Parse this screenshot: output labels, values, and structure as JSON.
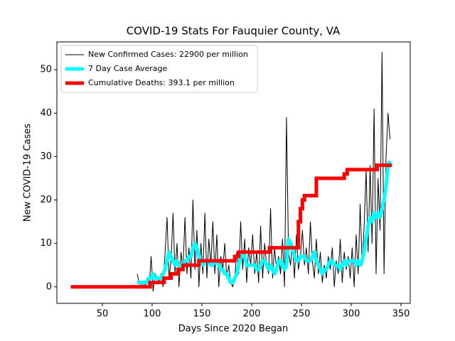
{
  "chart_data": {
    "type": "line",
    "title": "COVID-19 Stats For Fauquier County, VA",
    "x_label": "Days Since 2020 Began",
    "y_label": "New COVID-19 Cases",
    "xlim": [
      4.3,
      359.3
    ],
    "ylim": [
      -3.8,
      56.4
    ],
    "xticks": [
      50,
      100,
      150,
      200,
      250,
      300,
      350
    ],
    "yticks": [
      0,
      10,
      20,
      30,
      40,
      50
    ],
    "legend": "upper left",
    "series": [
      {
        "name": "New Confirmed Cases: 22900 per million",
        "color": "#000000",
        "width": 1,
        "x": [
          85,
          87,
          89,
          91,
          93,
          95,
          97,
          99,
          101,
          103,
          105,
          107,
          109,
          111,
          113,
          115,
          117,
          119,
          121,
          123,
          125,
          127,
          129,
          131,
          133,
          135,
          137,
          139,
          141,
          143,
          145,
          147,
          149,
          151,
          153,
          155,
          157,
          159,
          161,
          163,
          165,
          167,
          169,
          171,
          173,
          175,
          177,
          179,
          181,
          183,
          185,
          187,
          189,
          191,
          193,
          195,
          197,
          199,
          201,
          203,
          205,
          207,
          209,
          211,
          213,
          215,
          217,
          219,
          221,
          223,
          225,
          227,
          229,
          231,
          233,
          235,
          237,
          239,
          241,
          243,
          245,
          247,
          249,
          251,
          253,
          255,
          257,
          259,
          261,
          263,
          265,
          267,
          269,
          271,
          273,
          275,
          277,
          279,
          281,
          283,
          285,
          287,
          289,
          291,
          293,
          295,
          297,
          299,
          301,
          303,
          305,
          307,
          309,
          311,
          313,
          315,
          317,
          319,
          321,
          323,
          325,
          327,
          329,
          331,
          333,
          335,
          337,
          339
        ],
        "values": [
          3,
          1,
          0,
          1,
          0,
          2,
          0,
          7,
          -1,
          3,
          2,
          1,
          3,
          0,
          8,
          16,
          2,
          6,
          17,
          3,
          10,
          0,
          8,
          4,
          16,
          3,
          9,
          2,
          20,
          4,
          13,
          0,
          10,
          3,
          17,
          2,
          11,
          5,
          15,
          3,
          12,
          0,
          7,
          4,
          10,
          2,
          5,
          1,
          0,
          2,
          8,
          3,
          15,
          4,
          11,
          1,
          9,
          5,
          12,
          3,
          8,
          1,
          14,
          2,
          10,
          5,
          3,
          18,
          2,
          9,
          4,
          7,
          3,
          11,
          0,
          39,
          8,
          5,
          10,
          2,
          12,
          4,
          7,
          13,
          5,
          9,
          3,
          15,
          6,
          2,
          11,
          3,
          8,
          1,
          5,
          2,
          7,
          4,
          9,
          0,
          6,
          3,
          11,
          1,
          8,
          4,
          7,
          2,
          9,
          0,
          12,
          3,
          19,
          5,
          14,
          27,
          8,
          28,
          10,
          41,
          3,
          25,
          13,
          54,
          3,
          30,
          40,
          34
        ]
      },
      {
        "name": "7 Day Case Average",
        "color": "#00ffff",
        "width": 5,
        "x": [
          85,
          87,
          89,
          91,
          93,
          95,
          97,
          99,
          101,
          103,
          105,
          107,
          109,
          111,
          113,
          115,
          117,
          119,
          121,
          123,
          125,
          127,
          129,
          131,
          133,
          135,
          137,
          139,
          141,
          143,
          145,
          147,
          149,
          151,
          153,
          155,
          157,
          159,
          161,
          163,
          165,
          167,
          169,
          171,
          173,
          175,
          177,
          179,
          181,
          183,
          185,
          187,
          189,
          191,
          193,
          195,
          197,
          199,
          201,
          203,
          205,
          207,
          209,
          211,
          213,
          215,
          217,
          219,
          221,
          223,
          225,
          227,
          229,
          231,
          233,
          235,
          237,
          239,
          241,
          243,
          245,
          247,
          249,
          251,
          253,
          255,
          257,
          259,
          261,
          263,
          265,
          267,
          269,
          271,
          273,
          275,
          277,
          279,
          281,
          283,
          285,
          287,
          289,
          291,
          293,
          295,
          297,
          299,
          301,
          303,
          305,
          307,
          309,
          311,
          313,
          315,
          317,
          319,
          321,
          323,
          325,
          327,
          329,
          331,
          333,
          335,
          337,
          339
        ],
        "values": [
          1,
          1,
          1,
          1,
          1,
          1,
          2,
          2,
          3,
          2,
          2,
          2,
          2,
          3,
          4,
          6,
          8,
          7,
          6,
          5,
          6,
          5,
          4,
          5,
          6,
          6,
          7,
          7,
          9,
          10,
          9,
          7,
          6,
          5,
          6,
          6,
          6,
          5,
          5,
          6,
          6,
          5,
          4,
          4,
          3,
          3,
          2,
          1,
          1,
          2,
          3,
          5,
          7,
          8,
          7,
          5,
          5,
          5,
          5,
          5,
          4,
          4,
          5,
          6,
          6,
          5,
          4,
          5,
          4,
          3,
          4,
          6,
          6,
          5,
          4,
          5,
          11,
          10,
          9,
          7,
          6,
          6,
          7,
          7,
          7,
          6,
          6,
          6,
          7,
          8,
          6,
          5,
          4,
          3,
          4,
          4,
          5,
          6,
          6,
          5,
          5,
          5,
          4,
          5,
          6,
          5,
          6,
          6,
          6,
          6,
          5,
          6,
          5,
          6,
          8,
          11,
          14,
          16,
          15,
          17,
          16,
          17,
          16,
          18,
          20,
          23,
          28,
          29
        ]
      },
      {
        "name": "Cumulative Deaths: 393.1 per million",
        "color": "#ff0000",
        "width": 5,
        "drawstyle": "steps-post",
        "x": [
          20,
          98,
          112,
          119,
          126,
          131,
          147,
          183,
          187,
          218,
          247,
          249,
          251,
          253,
          265,
          293,
          296,
          326,
          339
        ],
        "values": [
          0,
          1,
          2,
          3,
          4,
          5,
          6,
          7,
          8,
          9,
          15,
          18,
          20,
          21,
          25,
          26,
          27,
          28,
          28
        ]
      }
    ]
  }
}
